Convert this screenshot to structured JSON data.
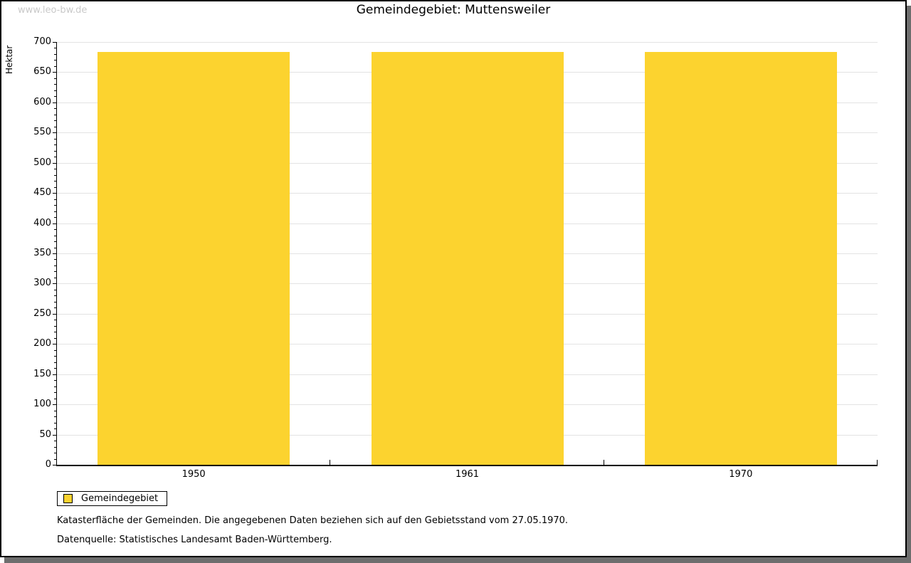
{
  "watermark": "www.leo-bw.de",
  "title": "Gemeindegebiet: Muttensweiler",
  "chart_data": {
    "type": "bar",
    "title": "Gemeindegebiet: Muttensweiler",
    "categories": [
      "1950",
      "1961",
      "1970"
    ],
    "series": [
      {
        "name": "Gemeindegebiet",
        "values": [
          683,
          683,
          683
        ]
      }
    ],
    "xlabel": "",
    "ylabel": "Hektar",
    "ylim": [
      0,
      700
    ],
    "ytick_step": 50,
    "y_minor_tick_step": 10,
    "grid": true,
    "legend_position": "bottom-left"
  },
  "legend": {
    "label": "Gemeindegebiet"
  },
  "footnotes": [
    "Katasterfläche der Gemeinden. Die angegebenen Daten beziehen sich auf den Gebietsstand vom 27.05.1970.",
    "Datenquelle: Statistisches Landesamt Baden-Württemberg."
  ],
  "colors": {
    "bar": "#fcd32f",
    "grid": "#e3e3e3",
    "axis": "#000000",
    "watermark": "#c9c9c9",
    "frame_shadow": "#6e6e6e"
  }
}
